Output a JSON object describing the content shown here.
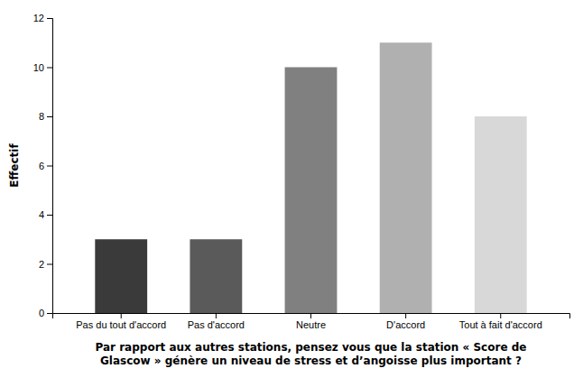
{
  "chart_data": {
    "type": "bar",
    "categories": [
      "Pas du tout d'accord",
      "Pas d'accord",
      "Neutre",
      "D'accord",
      "Tout à fait d'accord"
    ],
    "values": [
      3,
      3,
      10,
      11,
      8
    ],
    "colors": [
      "#3a3a3a",
      "#5a5a5a",
      "#808080",
      "#b0b0b0",
      "#d8d8d8"
    ],
    "ylabel": "Effectif",
    "xlabel": "Par rapport aux autres stations, pensez vous que la station « Score de\nGlascow » génère un niveau de stress et d’angoisse plus important ?",
    "ylim": [
      0,
      12
    ],
    "yticks": [
      0,
      2,
      4,
      6,
      8,
      10,
      12
    ],
    "grid": false
  }
}
